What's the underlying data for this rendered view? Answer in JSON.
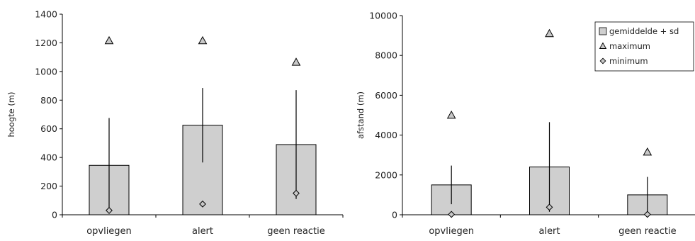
{
  "colors": {
    "bar_fill": "#cfcfcf",
    "stroke": "#000000",
    "marker_fill": "#c8c8c8",
    "text": "#222222"
  },
  "chart_data": [
    {
      "type": "bar",
      "title": "",
      "xlabel": "",
      "ylabel": "hoogte (m)",
      "ylim": [
        0,
        1400
      ],
      "yticks": [
        0,
        200,
        400,
        600,
        800,
        1000,
        1200,
        1400
      ],
      "categories": [
        "opvliegen",
        "alert",
        "geen reactie"
      ],
      "series": [
        {
          "name": "gemiddelde + sd",
          "kind": "bar",
          "values": [
            345,
            625,
            490
          ],
          "sd": [
            330,
            260,
            380
          ]
        },
        {
          "name": "maximum",
          "kind": "marker",
          "marker": "triangle",
          "values": [
            1215,
            1215,
            1065
          ]
        },
        {
          "name": "minimum",
          "kind": "marker",
          "marker": "diamond",
          "values": [
            30,
            75,
            150
          ]
        }
      ],
      "legend": null,
      "grid": false
    },
    {
      "type": "bar",
      "title": "",
      "xlabel": "",
      "ylabel": "afstand (m)",
      "ylim": [
        0,
        10000
      ],
      "yticks": [
        0,
        2000,
        4000,
        6000,
        8000,
        10000
      ],
      "categories": [
        "opvliegen",
        "alert",
        "geen reactie"
      ],
      "series": [
        {
          "name": "gemiddelde + sd",
          "kind": "bar",
          "values": [
            1500,
            2400,
            1000
          ],
          "sd": [
            970,
            2250,
            900
          ]
        },
        {
          "name": "maximum",
          "kind": "marker",
          "marker": "triangle",
          "values": [
            5000,
            9100,
            3150
          ]
        },
        {
          "name": "minimum",
          "kind": "marker",
          "marker": "diamond",
          "values": [
            20,
            380,
            20
          ]
        }
      ],
      "legend": "top-right",
      "grid": false
    }
  ]
}
